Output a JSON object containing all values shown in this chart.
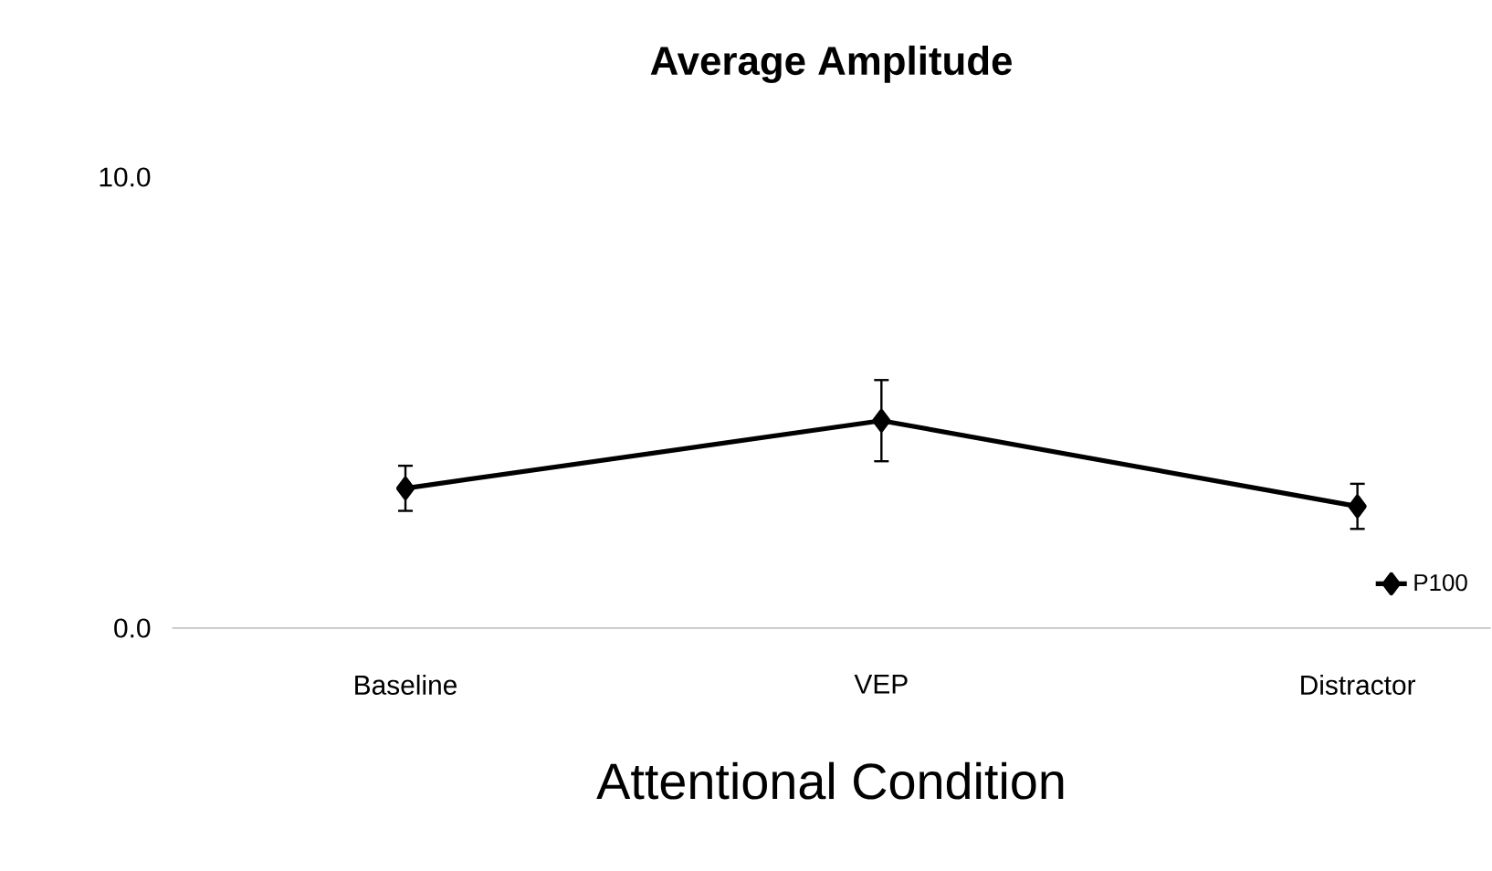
{
  "chart_data": {
    "type": "line",
    "title": "Average Amplitude",
    "xlabel": "Attentional Condition",
    "categories": [
      "Baseline",
      "VEP",
      "Distractor"
    ],
    "series": [
      {
        "name": "P100",
        "color": "#000000",
        "values": [
          3.1,
          4.6,
          2.7
        ],
        "errors": [
          0.5,
          0.9,
          0.5
        ]
      }
    ],
    "ylim": [
      0,
      10
    ],
    "yticks": [
      {
        "value": 0,
        "label": "0.0"
      },
      {
        "value": 10,
        "label": "10.0"
      }
    ],
    "grid": false,
    "legend": "bottom right",
    "marker": "diamond",
    "line_style": "solid"
  }
}
